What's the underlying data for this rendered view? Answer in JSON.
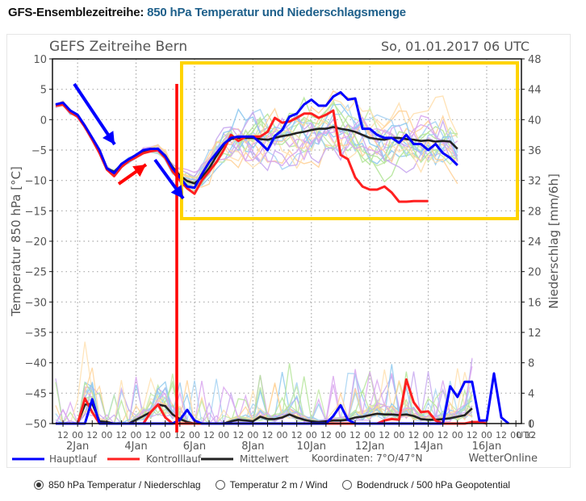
{
  "heading": {
    "prefix": "GFS-Ensemblezeitreihe:",
    "title": "850 hPa Temperatur und Niederschlagsmenge"
  },
  "radio_options": [
    {
      "label": "850 hPa Temperatur / Niederschlag",
      "selected": true
    },
    {
      "label": "Temperatur 2 m / Wind",
      "selected": false
    },
    {
      "label": "Bodendruck / 500 hPa Geopotential",
      "selected": false
    }
  ],
  "chart_data": {
    "type": "line",
    "title": "GEFS Zeitreihe Bern",
    "run_label": "So, 01.01.2017 06 UTC",
    "ylabel": "Temperatur 850 hPa [°C]",
    "y2label": "Niederschlag [mm/6h]",
    "ylim": [
      -50,
      10
    ],
    "y2lim": [
      0,
      48
    ],
    "yticks": [
      10,
      5,
      0,
      -5,
      -10,
      -15,
      -20,
      -25,
      -30,
      -35,
      -40,
      -45,
      -50
    ],
    "y2ticks": [
      48,
      44,
      40,
      36,
      32,
      28,
      24,
      20,
      16,
      12,
      8,
      4,
      0
    ],
    "x_hour_ticks": [
      "12",
      "00",
      "12",
      "00",
      "12",
      "00",
      "12",
      "00",
      "12",
      "00",
      "12",
      "00",
      "12",
      "00",
      "12",
      "00",
      "12",
      "00",
      "12",
      "00",
      "12",
      "00",
      "12",
      "00",
      "12",
      "00",
      "12",
      "00",
      "12",
      "00",
      "12",
      "00",
      "12"
    ],
    "x_day_labels": [
      "2Jan",
      "4Jan",
      "6Jan",
      "8Jan",
      "10Jan",
      "12Jan",
      "14Jan",
      "16Jan"
    ],
    "x_unit_label": "UTC",
    "grid": true,
    "time_step_hours": 6,
    "start": "01.01.2017 06 UTC",
    "legend": [
      {
        "name": "Hauptlauf",
        "color": "#0000ff"
      },
      {
        "name": "Kontrolllauf",
        "color": "#ff2020"
      },
      {
        "name": "Mittelwert",
        "color": "#222222"
      }
    ],
    "footer_coords": "Koordinaten: 7°O/47°N",
    "footer_source": "WetterOnline",
    "series": [
      {
        "name": "Hauptlauf",
        "axis": "temperature",
        "color": "#0000ff",
        "values": [
          2.5,
          2.8,
          1.5,
          0.8,
          -1,
          -3,
          -5,
          -8,
          -8.8,
          -7.3,
          -6.5,
          -5.8,
          -5,
          -4.8,
          -4.8,
          -6,
          -8,
          -9.5,
          -11,
          -11.2,
          -9,
          -7,
          -5.5,
          -4,
          -3,
          -2.8,
          -2.8,
          -2.8,
          -3.8,
          -5,
          -2.7,
          -1.7,
          0.5,
          1,
          2.5,
          3.3,
          2.3,
          2.3,
          3.8,
          4.5,
          3.3,
          3.5,
          -1.5,
          -1.5,
          -2.5,
          -3,
          -3,
          -3.8,
          -2.5,
          -4,
          -4,
          -5,
          -4,
          -5.5,
          -6.3,
          -7.5
        ]
      },
      {
        "name": "Kontrolllauf",
        "axis": "temperature",
        "color": "#ff2020",
        "values": [
          2.3,
          2.5,
          1.2,
          0.5,
          -1.2,
          -3.3,
          -5.5,
          -8.2,
          -9.3,
          -7.8,
          -6.8,
          -6.2,
          -5.5,
          -5.2,
          -5,
          -6.3,
          -8.5,
          -10,
          -11.3,
          -12.2,
          -10,
          -8.5,
          -7,
          -5,
          -2.5,
          -3.5,
          -2.8,
          -2.8,
          -2.8,
          -2,
          0.3,
          -0.5,
          -0.3,
          0.3,
          1,
          1,
          0.3,
          0.8,
          1.5,
          -5.8,
          -6.5,
          -9.5,
          -11,
          -11.5,
          -11.5,
          -11,
          -12,
          -13.5,
          -13.5,
          -13.4,
          -13.4,
          -13.4
        ]
      },
      {
        "name": "Mittelwert",
        "axis": "temperature",
        "color": "#222222",
        "values": [
          2.4,
          2.6,
          1.3,
          0.6,
          -1.1,
          -3.1,
          -5.2,
          -8,
          -8.6,
          -7.4,
          -6.6,
          -5.9,
          -5.2,
          -4.9,
          -4.9,
          -5.9,
          -7.8,
          -9.2,
          -10.1,
          -10.5,
          -9.5,
          -8,
          -6,
          -4.2,
          -3.2,
          -3,
          -3,
          -3,
          -3.2,
          -3.3,
          -3,
          -2.7,
          -2.5,
          -2.2,
          -2,
          -1.7,
          -1.5,
          -1.5,
          -1.2,
          -1.5,
          -1.7,
          -2,
          -2.5,
          -3,
          -3.2,
          -3.3,
          -3,
          -3,
          -3.2,
          -3.3,
          -3.5,
          -3.4,
          -3.6,
          -3.5,
          -3.6,
          -4.8
        ]
      },
      {
        "name": "Hauptlauf Niederschlag",
        "axis": "precip",
        "color": "#0000ff",
        "values": [
          0,
          0,
          0,
          0,
          0,
          3.2,
          0,
          0,
          0,
          0,
          0,
          0,
          0,
          0,
          0,
          0,
          0,
          0.5,
          1.8,
          0.4,
          0,
          0,
          0,
          0,
          0,
          0,
          0,
          0,
          0,
          0,
          0,
          0,
          0,
          0,
          0,
          0,
          0,
          0,
          1,
          2.4,
          0.5,
          0,
          0,
          0,
          0,
          0,
          0,
          0,
          0,
          0,
          0,
          0,
          0,
          0,
          4.9,
          3.5,
          5.5,
          5.5,
          0.4,
          0.4,
          6.6,
          0.8,
          0
        ]
      },
      {
        "name": "Kontrolllauf Niederschlag",
        "axis": "precip",
        "color": "#ff2020",
        "values": [
          0,
          0,
          0,
          0,
          3.3,
          1.5,
          0,
          0,
          0,
          0,
          0,
          0,
          0,
          1.5,
          2.5,
          0.8,
          0,
          0,
          0,
          0,
          0,
          0,
          0,
          0,
          0,
          0,
          0,
          0,
          0,
          0,
          0,
          0,
          0,
          0,
          0,
          0,
          0,
          0,
          0,
          0,
          0,
          0,
          0,
          0,
          0,
          0.4,
          0.6,
          0.5,
          5.8,
          2.8,
          1.5,
          1.6,
          0.4,
          0,
          0,
          0,
          0,
          0.2,
          0.2,
          0
        ]
      },
      {
        "name": "Mittelwert Niederschlag",
        "axis": "precip",
        "color": "#222222",
        "values": [
          0,
          0,
          0,
          0,
          2.5,
          2.6,
          0.3,
          0.2,
          0,
          0,
          0,
          0.5,
          1,
          1.5,
          2.5,
          2.3,
          1.2,
          0.6,
          0.2,
          0,
          0,
          0,
          0,
          0,
          0.3,
          0.5,
          0.4,
          0.3,
          0.9,
          0.6,
          0.6,
          0.8,
          1.2,
          0.8,
          0.5,
          0.3,
          0.2,
          0.3,
          0.4,
          0.4,
          0.5,
          0.8,
          0.9,
          1.1,
          1.3,
          1.2,
          1.2,
          1.1,
          1.2,
          1,
          0.6,
          0.5,
          0.5,
          0.6,
          0.7,
          0.9,
          1.1,
          2
        ]
      }
    ],
    "annotations": [
      {
        "type": "arrow",
        "color": "#0000ff",
        "description": "blue arrow pointing down-right toward 2Jan dip"
      },
      {
        "type": "arrow",
        "color": "#ff0000",
        "description": "red arrow pointing up-right toward 4Jan rise"
      },
      {
        "type": "arrow",
        "color": "#0000ff",
        "description": "blue arrow pointing down-right toward 6Jan dip"
      },
      {
        "type": "vline",
        "color": "#ff0000",
        "description": "red vertical line at about 5 Jan 12 UTC"
      },
      {
        "type": "rect",
        "color": "#ffd400",
        "description": "yellow box highlighting ensemble spread from 6Jan to 17Jan"
      }
    ]
  }
}
